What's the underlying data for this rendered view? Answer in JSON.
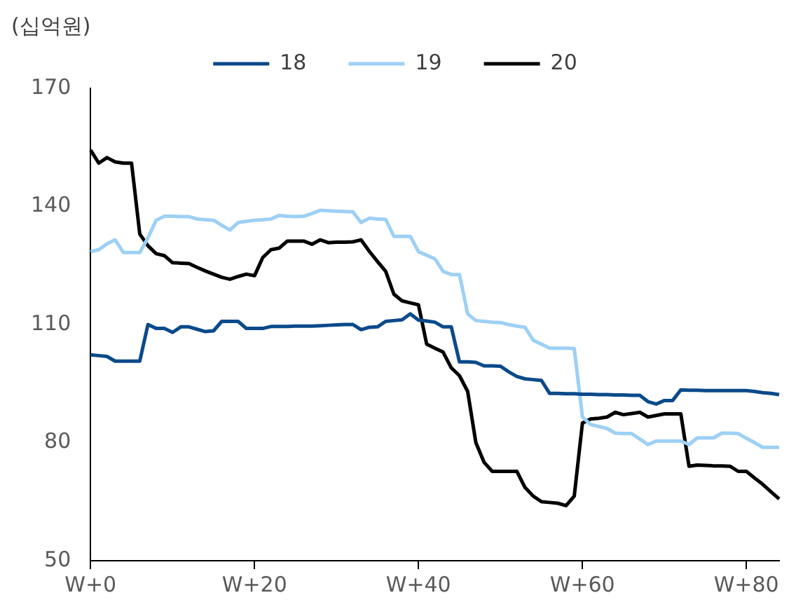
{
  "chart_data": {
    "type": "line",
    "ylabel": "(십억원)",
    "categories": [
      "W+0",
      null,
      null,
      null,
      null,
      null,
      null,
      null,
      null,
      null,
      null,
      null,
      null,
      null,
      null,
      null,
      null,
      null,
      null,
      null,
      "W+20",
      null,
      null,
      null,
      null,
      null,
      null,
      null,
      null,
      null,
      null,
      null,
      null,
      null,
      null,
      null,
      null,
      null,
      null,
      null,
      "W+40",
      null,
      null,
      null,
      null,
      null,
      null,
      null,
      null,
      null,
      null,
      null,
      null,
      null,
      null,
      null,
      null,
      null,
      null,
      null,
      "W+60",
      null,
      null,
      null,
      null,
      null,
      null,
      null,
      null,
      null,
      null,
      null,
      null,
      null,
      null,
      null,
      null,
      null,
      null,
      null,
      "W+80",
      null,
      null,
      null,
      null
    ],
    "ylim": [
      50,
      170
    ],
    "yticks": [
      50,
      80,
      110,
      140,
      170
    ],
    "grid": false,
    "legend": "top",
    "marker": "none",
    "line_style": "solid",
    "series": [
      {
        "name": "18",
        "color": "#0b4a8b",
        "values": [
          102.3,
          102.1,
          101.9,
          100.7,
          100.7,
          100.7,
          100.7,
          110,
          109,
          109,
          108,
          109.4,
          109.4,
          108.8,
          108.2,
          108.4,
          110.8,
          110.8,
          110.8,
          109,
          109,
          109,
          109.5,
          109.5,
          109.5,
          109.6,
          109.6,
          109.6,
          109.7,
          109.8,
          109.9,
          110,
          110,
          108.7,
          109.3,
          109.4,
          110.8,
          111,
          111.2,
          112.7,
          111.1,
          110.9,
          110.6,
          109.4,
          109.4,
          100.5,
          100.5,
          100.4,
          99.5,
          99.5,
          99.4,
          98,
          96.8,
          96.2,
          96,
          95.8,
          92.5,
          92.5,
          92.4,
          92.4,
          92.3,
          92.3,
          92.2,
          92.2,
          92.1,
          92.1,
          92,
          92,
          90.4,
          89.8,
          90.7,
          90.7,
          93.4,
          93.3,
          93.3,
          93.2,
          93.2,
          93.2,
          93.2,
          93.2,
          93.2,
          93,
          92.7,
          92.5,
          92.2
        ]
      },
      {
        "name": "19",
        "color": "#9dd0f5",
        "values": [
          128.5,
          129,
          130.5,
          131.5,
          128.3,
          128.3,
          128.3,
          132,
          136.5,
          137.5,
          137.5,
          137.4,
          137.4,
          136.8,
          136.6,
          136.5,
          135.2,
          134,
          135.9,
          136.2,
          136.5,
          136.6,
          136.8,
          137.7,
          137.5,
          137.4,
          137.5,
          138.2,
          139,
          138.9,
          138.8,
          138.7,
          138.6,
          135.9,
          137,
          136.8,
          136.7,
          132.4,
          132.4,
          132.4,
          128.5,
          127.6,
          126.7,
          123.5,
          122.7,
          122.7,
          112.7,
          111,
          110.8,
          110.6,
          110.5,
          110,
          109.6,
          109.3,
          106,
          105,
          104,
          104,
          104,
          103.9,
          86.5,
          84.6,
          84.1,
          83.6,
          82.4,
          82.3,
          82.3,
          80.9,
          79.5,
          80.4,
          80.4,
          80.4,
          80.4,
          79.5,
          81.2,
          81.2,
          81.2,
          82.4,
          82.4,
          82.3,
          81.1,
          80,
          78.8,
          78.8,
          78.8
        ]
      },
      {
        "name": "20",
        "color": "#000000",
        "values": [
          154.3,
          151,
          152.4,
          151.3,
          151,
          151,
          133,
          130,
          128,
          127.5,
          125.7,
          125.6,
          125.5,
          124.5,
          123.6,
          122.8,
          122,
          121.5,
          122.2,
          122.8,
          122.4,
          127,
          129,
          129.4,
          131.2,
          131.2,
          131.2,
          130.4,
          131.5,
          130.8,
          130.9,
          130.9,
          131,
          131.5,
          128.6,
          126,
          123.5,
          117.7,
          116,
          115.5,
          115,
          105,
          104,
          103,
          99,
          97,
          93,
          80,
          75,
          72.7,
          72.7,
          72.7,
          72.7,
          68.6,
          66.4,
          65,
          64.8,
          64.6,
          64,
          66.4,
          85,
          86,
          86.2,
          86.5,
          87.7,
          87.1,
          87.4,
          87.7,
          86.5,
          86.9,
          87.3,
          87.3,
          87.3,
          74,
          74.3,
          74.2,
          74.1,
          74.1,
          74,
          72.7,
          72.7,
          71,
          69.4,
          67.5,
          65.7
        ]
      }
    ]
  }
}
